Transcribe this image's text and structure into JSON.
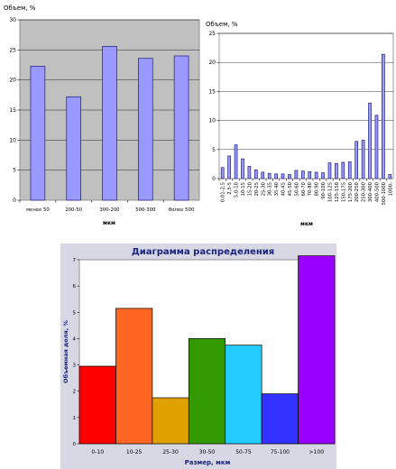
{
  "chart_data": [
    {
      "type": "bar",
      "ylabel": "Объем, %",
      "xlabel": "мкм",
      "ylim": [
        0,
        30
      ],
      "yticks": [
        0,
        5,
        10,
        15,
        20,
        25,
        30
      ],
      "categories": [
        "менее 50",
        "200-50",
        "300-200",
        "500-300",
        "более 500"
      ],
      "values": [
        22.3,
        17.2,
        25.6,
        23.6,
        24.0
      ],
      "bar_color": "#9999ff",
      "plot_bg": "#c0c0c0"
    },
    {
      "type": "bar",
      "ylabel": "Объем, %",
      "xlabel": "мкм",
      "ylim": [
        0,
        25
      ],
      "yticks": [
        0,
        5,
        10,
        15,
        20,
        25
      ],
      "categories": [
        "0,01-2,5",
        "2,5-5",
        "5,0-10",
        "10-15",
        "15-20",
        "20-25",
        "25-30",
        "30-35",
        "35-40",
        "40-45",
        "45-50",
        "50-60",
        "60-70",
        "70-80",
        "80-90",
        "90-100",
        "100-125",
        "125-150",
        "150-175",
        "175-200",
        "200-250",
        "250-300",
        "300-400",
        "400-500",
        "500-1000",
        "1000-"
      ],
      "values": [
        1.9,
        3.9,
        5.8,
        3.4,
        2.1,
        1.5,
        1.1,
        0.9,
        0.8,
        0.8,
        0.7,
        1.4,
        1.3,
        1.2,
        1.1,
        1.0,
        2.7,
        2.6,
        2.8,
        2.9,
        6.4,
        6.6,
        13.0,
        10.9,
        21.4,
        0.7
      ],
      "bar_color": "#9999ff",
      "plot_bg": "#ffffff"
    },
    {
      "type": "bar",
      "title": "Диаграмма распределения",
      "ylabel": "Объемная доля, %",
      "xlabel": "Размер, мкм",
      "ylim": [
        0,
        7
      ],
      "yticks": [
        0,
        1,
        2,
        3,
        4,
        5,
        6,
        7
      ],
      "categories": [
        "0-10",
        "10-25",
        "25-30",
        "30-50",
        "50-75",
        "75-100",
        ">100"
      ],
      "values": [
        2.95,
        5.15,
        1.75,
        4.0,
        3.75,
        1.9,
        7.15
      ],
      "bar_colors": [
        "#ff0000",
        "#ff6622",
        "#e0a000",
        "#339900",
        "#22ccff",
        "#3333ff",
        "#9900ff"
      ],
      "plot_bg": "#ffffff",
      "panel_bg": "#d8d8e4"
    }
  ]
}
